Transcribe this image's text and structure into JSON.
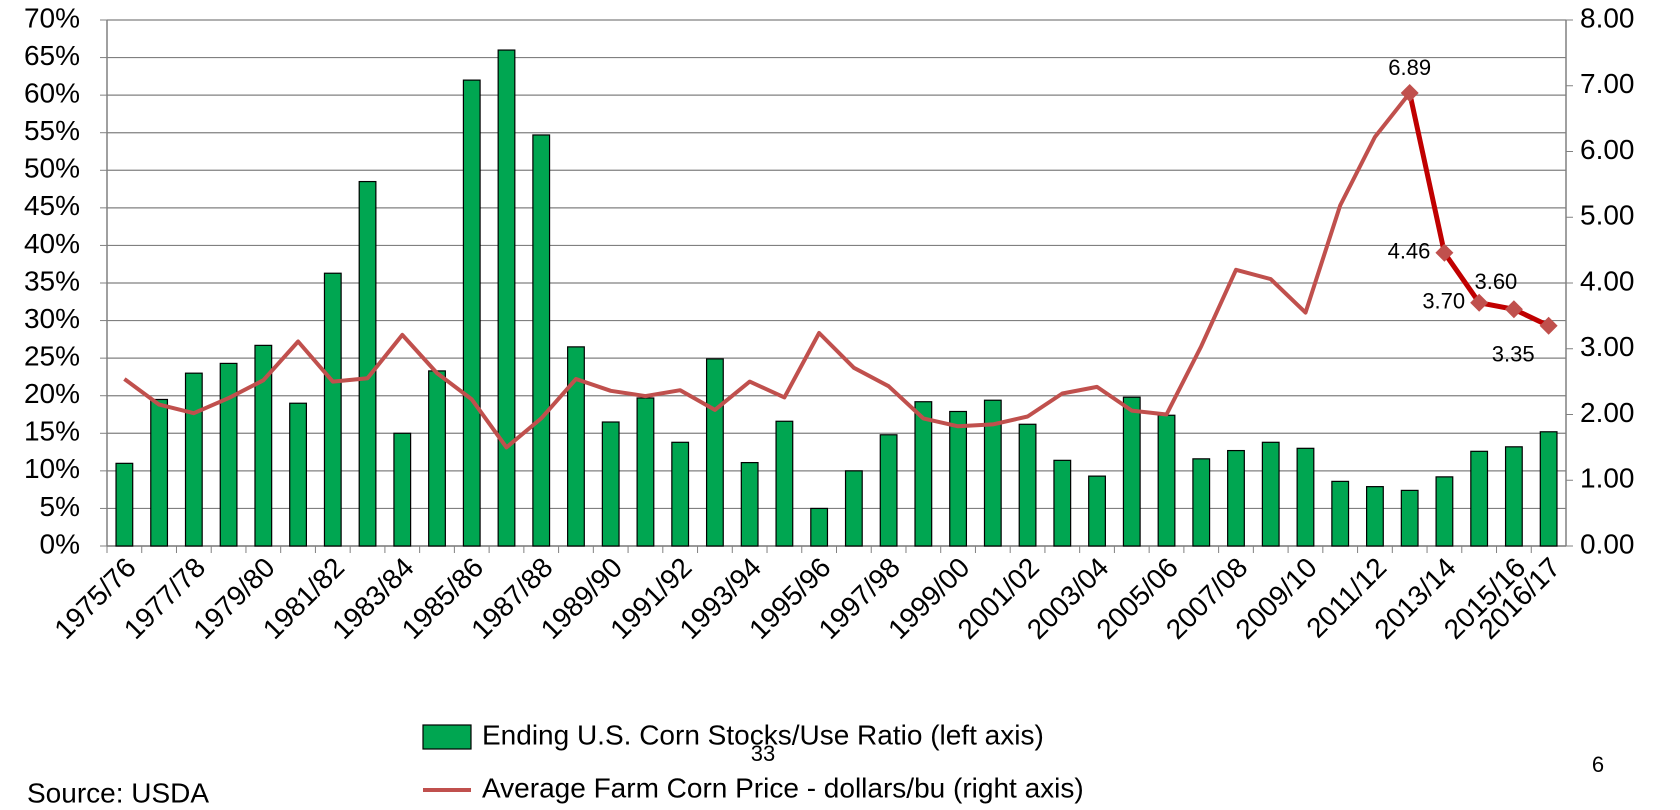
{
  "chart_data": {
    "type": "bar-line",
    "categories": [
      "1975/76",
      null,
      "1977/78",
      null,
      "1979/80",
      null,
      "1981/82",
      null,
      "1983/84",
      null,
      "1985/86",
      null,
      "1987/88",
      null,
      "1989/90",
      null,
      "1991/92",
      null,
      "1993/94",
      null,
      "1995/96",
      null,
      "1997/98",
      null,
      "1999/00",
      null,
      "2001/02",
      null,
      "2003/04",
      null,
      "2005/06",
      null,
      "2007/08",
      null,
      "2009/10",
      null,
      "2011/12",
      null,
      "2013/14",
      null,
      "2015/16",
      "2016/17"
    ],
    "series": [
      {
        "name": "Ending U.S. Corn Stocks/Use Ratio (left axis)",
        "color": "#00a651",
        "axis": "y",
        "values": [
          11,
          19.5,
          23,
          24.3,
          26.7,
          19,
          36.3,
          48.5,
          15,
          23.3,
          62,
          66,
          54.7,
          26.5,
          16.5,
          19.7,
          13.8,
          24.9,
          11.1,
          16.6,
          5,
          10,
          14.8,
          19.2,
          17.9,
          19.4,
          16.2,
          11.4,
          9.3,
          19.8,
          17.4,
          11.6,
          12.7,
          13.8,
          13,
          8.6,
          7.9,
          7.4,
          9.2,
          12.6,
          13.2,
          15.2
        ]
      },
      {
        "name": "Average Farm Corn Price - dollars/bu (right axis)",
        "color": "#c0504d",
        "axis": "y2",
        "highlight_color": "#c00000",
        "values": [
          2.54,
          2.15,
          2.02,
          2.25,
          2.52,
          3.11,
          2.5,
          2.55,
          3.21,
          2.63,
          2.23,
          1.5,
          1.94,
          2.54,
          2.36,
          2.28,
          2.37,
          2.07,
          2.5,
          2.26,
          3.24,
          2.71,
          2.43,
          1.94,
          1.82,
          1.85,
          1.97,
          2.32,
          2.42,
          2.06,
          2.0,
          3.04,
          4.2,
          4.06,
          3.55,
          5.18,
          6.22,
          6.89,
          4.46,
          3.7,
          3.6,
          3.35
        ],
        "value_labels": [
          null,
          null,
          null,
          null,
          null,
          null,
          null,
          null,
          null,
          null,
          null,
          null,
          null,
          null,
          null,
          null,
          null,
          null,
          null,
          null,
          null,
          null,
          null,
          null,
          null,
          null,
          null,
          null,
          null,
          null,
          null,
          null,
          null,
          null,
          null,
          null,
          null,
          "6.89",
          "4.46",
          "3.70",
          "3.60",
          "3.35"
        ]
      }
    ],
    "ylim": [
      0,
      70
    ],
    "yticks": [
      {
        "value": 0,
        "label": "0%"
      },
      {
        "value": 5,
        "label": "5%"
      },
      {
        "value": 10,
        "label": "10%"
      },
      {
        "value": 15,
        "label": "15%"
      },
      {
        "value": 20,
        "label": "20%"
      },
      {
        "value": 25,
        "label": "25%"
      },
      {
        "value": 30,
        "label": "30%"
      },
      {
        "value": 35,
        "label": "35%"
      },
      {
        "value": 40,
        "label": "40%"
      },
      {
        "value": 45,
        "label": "45%"
      },
      {
        "value": 50,
        "label": "50%"
      },
      {
        "value": 55,
        "label": "55%"
      },
      {
        "value": 60,
        "label": "60%"
      },
      {
        "value": 65,
        "label": "65%"
      },
      {
        "value": 70,
        "label": "70%"
      }
    ],
    "y2lim": [
      0,
      8
    ],
    "y2ticks": [
      {
        "value": 0,
        "label": "0.00"
      },
      {
        "value": 1,
        "label": "1.00"
      },
      {
        "value": 2,
        "label": "2.00"
      },
      {
        "value": 3,
        "label": "3.00"
      },
      {
        "value": 4,
        "label": "4.00"
      },
      {
        "value": 5,
        "label": "5.00"
      },
      {
        "value": 6,
        "label": "6.00"
      },
      {
        "value": 7,
        "label": "7.00"
      },
      {
        "value": 8,
        "label": "8.00"
      }
    ],
    "grid": true,
    "footnote": "Source: USDA",
    "page_labels": [
      "33",
      "6"
    ]
  }
}
